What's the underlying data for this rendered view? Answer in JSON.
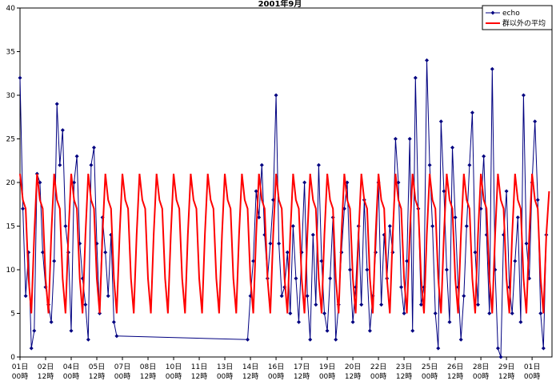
{
  "chart_data": {
    "type": "line",
    "title": "2001年9月",
    "xlim": [
      0,
      748
    ],
    "ylim": [
      0,
      40
    ],
    "yticks": [
      0,
      5,
      10,
      15,
      20,
      25,
      30,
      35,
      40
    ],
    "xticks": [
      {
        "value": 0,
        "label": "01日\n00時"
      },
      {
        "value": 36,
        "label": "02日\n12時"
      },
      {
        "value": 72,
        "label": "04日\n00時"
      },
      {
        "value": 108,
        "label": "05日\n12時"
      },
      {
        "value": 144,
        "label": "07日\n00時"
      },
      {
        "value": 180,
        "label": "08日\n12時"
      },
      {
        "value": 216,
        "label": "10日\n00時"
      },
      {
        "value": 252,
        "label": "11日\n12時"
      },
      {
        "value": 288,
        "label": "13日\n00時"
      },
      {
        "value": 324,
        "label": "14日\n12時"
      },
      {
        "value": 360,
        "label": "16日\n00時"
      },
      {
        "value": 396,
        "label": "17日\n12時"
      },
      {
        "value": 432,
        "label": "19日\n00時"
      },
      {
        "value": 468,
        "label": "20日\n12時"
      },
      {
        "value": 504,
        "label": "22日\n00時"
      },
      {
        "value": 540,
        "label": "23日\n12時"
      },
      {
        "value": 576,
        "label": "25日\n00時"
      },
      {
        "value": 612,
        "label": "26日\n12時"
      },
      {
        "value": 648,
        "label": "28日\n00時"
      },
      {
        "value": 684,
        "label": "29日\n12時"
      },
      {
        "value": 720,
        "label": "01日\n00時"
      }
    ],
    "legend": "upper right",
    "series": [
      {
        "name": "echo",
        "color": "#000080",
        "marker": "diamond",
        "x": [
          0,
          4,
          8,
          12,
          16,
          20,
          24,
          28,
          32,
          36,
          40,
          44,
          48,
          52,
          56,
          60,
          64,
          68,
          72,
          76,
          80,
          84,
          88,
          92,
          96,
          100,
          104,
          108,
          112,
          116,
          120,
          124,
          128,
          132,
          136,
          320,
          324,
          328,
          332,
          336,
          340,
          344,
          348,
          352,
          356,
          360,
          364,
          368,
          372,
          376,
          380,
          384,
          388,
          392,
          396,
          400,
          404,
          408,
          412,
          416,
          420,
          424,
          428,
          432,
          436,
          440,
          444,
          448,
          452,
          456,
          460,
          464,
          468,
          472,
          476,
          480,
          484,
          488,
          492,
          496,
          500,
          504,
          508,
          512,
          516,
          520,
          524,
          528,
          532,
          536,
          540,
          544,
          548,
          552,
          556,
          560,
          564,
          568,
          572,
          576,
          580,
          584,
          588,
          592,
          596,
          600,
          604,
          608,
          612,
          616,
          620,
          624,
          628,
          632,
          636,
          640,
          644,
          648,
          652,
          656,
          660,
          664,
          668,
          672,
          676,
          680,
          684,
          688,
          692,
          696,
          700,
          704,
          708,
          712,
          716,
          720,
          724,
          728,
          732,
          736,
          740
        ],
        "values": [
          32,
          17,
          7,
          12,
          1,
          3,
          21,
          20,
          12,
          8,
          6,
          4,
          11,
          29,
          22,
          26,
          15,
          12,
          3,
          20,
          23,
          13,
          9,
          6,
          2,
          22,
          24,
          13,
          5,
          16,
          12,
          7,
          14,
          4,
          2.4,
          2,
          7,
          11,
          19,
          16,
          22,
          14,
          9,
          13,
          18,
          30,
          13,
          7,
          8,
          12,
          5,
          15,
          9,
          4,
          12,
          20,
          7,
          2,
          14,
          6,
          22,
          11,
          5,
          3,
          9,
          16,
          2,
          6,
          12,
          17,
          20,
          10,
          4,
          8,
          15,
          6,
          18,
          10,
          3,
          7,
          12,
          20,
          6,
          14,
          9,
          15,
          12,
          25,
          20,
          8,
          5,
          11,
          25,
          3,
          32,
          17,
          6,
          8,
          34,
          22,
          15,
          5,
          1,
          27,
          19,
          10,
          4,
          24,
          16,
          8,
          2,
          7,
          15,
          22,
          28,
          12,
          6,
          17,
          23,
          14,
          5,
          33,
          10,
          1,
          0,
          14,
          19,
          8,
          5,
          11,
          16,
          4,
          30,
          13,
          9,
          20,
          27,
          18,
          5,
          1,
          14
        ]
      },
      {
        "name": "群以外の平均",
        "color": "#ff0000",
        "x": [
          0,
          4,
          8,
          12,
          16,
          20,
          24,
          28,
          32,
          36,
          40,
          44,
          48,
          52,
          56,
          60,
          64,
          68,
          72,
          76,
          80,
          84,
          88,
          92,
          96,
          100,
          104,
          108,
          112,
          116,
          120,
          124,
          128,
          132,
          136,
          140,
          144,
          148,
          152,
          156,
          160,
          164,
          168,
          172,
          176,
          180,
          184,
          188,
          192,
          196,
          200,
          204,
          208,
          212,
          216,
          220,
          224,
          228,
          232,
          236,
          240,
          244,
          248,
          252,
          256,
          260,
          264,
          268,
          272,
          276,
          280,
          284,
          288,
          292,
          296,
          300,
          304,
          308,
          312,
          316,
          320,
          324,
          328,
          332,
          336,
          340,
          344,
          348,
          352,
          356,
          360,
          364,
          368,
          372,
          376,
          380,
          384,
          388,
          392,
          396,
          400,
          404,
          408,
          412,
          416,
          420,
          424,
          428,
          432,
          436,
          440,
          444,
          448,
          452,
          456,
          460,
          464,
          468,
          472,
          476,
          480,
          484,
          488,
          492,
          496,
          500,
          504,
          508,
          512,
          516,
          520,
          524,
          528,
          532,
          536,
          540,
          544,
          548,
          552,
          556,
          560,
          564,
          568,
          572,
          576,
          580,
          584,
          588,
          592,
          596,
          600,
          604,
          608,
          612,
          616,
          620,
          624,
          628,
          632,
          636,
          640,
          644,
          648,
          652,
          656,
          660,
          664,
          668,
          672,
          676,
          680,
          684,
          688,
          692,
          696,
          700,
          704,
          708,
          712,
          716,
          720,
          724,
          728,
          732,
          736,
          740,
          744
        ],
        "values": [
          21,
          18,
          17,
          9,
          5,
          14,
          21,
          18,
          17,
          9,
          5,
          14,
          21,
          18,
          17,
          9,
          5,
          14,
          21,
          18,
          17,
          9,
          5,
          14,
          21,
          18,
          17,
          9,
          5,
          14,
          21,
          18,
          17,
          9,
          5,
          14,
          21,
          18,
          17,
          9,
          5,
          14,
          21,
          18,
          17,
          9,
          5,
          14,
          21,
          18,
          17,
          9,
          5,
          14,
          21,
          18,
          17,
          9,
          5,
          14,
          21,
          18,
          17,
          9,
          5,
          14,
          21,
          18,
          17,
          9,
          5,
          14,
          21,
          18,
          17,
          9,
          5,
          14,
          21,
          18,
          17,
          9,
          5,
          14,
          21,
          18,
          17,
          9,
          5,
          14,
          21,
          18,
          17,
          9,
          5,
          14,
          21,
          18,
          17,
          9,
          5,
          14,
          21,
          18,
          17,
          9,
          5,
          14,
          21,
          18,
          17,
          9,
          5,
          14,
          21,
          18,
          17,
          9,
          5,
          14,
          21,
          18,
          17,
          9,
          5,
          14,
          21,
          18,
          17,
          9,
          5,
          14,
          21,
          18,
          17,
          9,
          5,
          14,
          21,
          18,
          17,
          9,
          5,
          14,
          21,
          18,
          17,
          9,
          5,
          14,
          21,
          18,
          17,
          9,
          5,
          14,
          21,
          18,
          17,
          9,
          5,
          14,
          21,
          18,
          17,
          9,
          5,
          14,
          21,
          18,
          17,
          9,
          5,
          14,
          21,
          18,
          17,
          9,
          5,
          14,
          21,
          18,
          17,
          9,
          5,
          14,
          19
        ]
      }
    ]
  }
}
